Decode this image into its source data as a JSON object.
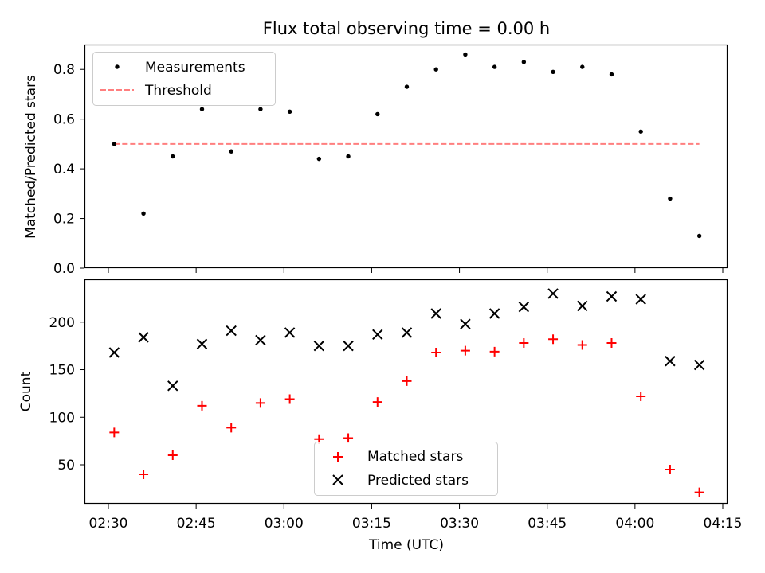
{
  "chart_data": [
    {
      "type": "scatter",
      "title": "Flux total observing time = 0.00 h",
      "xlabel": "",
      "ylabel": "Matched/Predicted stars",
      "ylim": [
        0,
        0.9
      ],
      "yticks": [
        "0.0",
        "0.2",
        "0.4",
        "0.6",
        "0.8"
      ],
      "x": [
        "02:31",
        "02:36",
        "02:41",
        "02:46",
        "02:51",
        "02:56",
        "03:01",
        "03:06",
        "03:11",
        "03:16",
        "03:21",
        "03:26",
        "03:31",
        "03:36",
        "03:41",
        "03:46",
        "03:51",
        "03:56",
        "04:01",
        "04:06",
        "04:11"
      ],
      "series": [
        {
          "name": "Measurements",
          "marker": "dot",
          "color": "#000000",
          "values": [
            0.5,
            0.22,
            0.45,
            0.64,
            0.47,
            0.64,
            0.63,
            0.44,
            0.45,
            0.62,
            0.73,
            0.8,
            0.86,
            0.81,
            0.83,
            0.79,
            0.81,
            0.78,
            0.55,
            0.28,
            0.13
          ]
        },
        {
          "name": "Threshold",
          "marker": "dashed-line",
          "color": "#ff7f7f",
          "x": [
            "02:31",
            "04:11"
          ],
          "values": [
            0.5,
            0.5
          ]
        }
      ],
      "legend": "top-left",
      "grid": false
    },
    {
      "type": "scatter",
      "title": "",
      "xlabel": "Time (UTC)",
      "ylabel": "Count",
      "ylim": [
        9,
        245
      ],
      "yticks": [
        "50",
        "100",
        "150",
        "200"
      ],
      "xticks": [
        "02:30",
        "02:45",
        "03:00",
        "03:15",
        "03:30",
        "03:45",
        "04:00",
        "04:15"
      ],
      "x": [
        "02:31",
        "02:36",
        "02:41",
        "02:46",
        "02:51",
        "02:56",
        "03:01",
        "03:06",
        "03:11",
        "03:16",
        "03:21",
        "03:26",
        "03:31",
        "03:36",
        "03:41",
        "03:46",
        "03:51",
        "03:56",
        "04:01",
        "04:06",
        "04:11"
      ],
      "series": [
        {
          "name": "Matched stars",
          "marker": "plus",
          "color": "#ff0000",
          "values": [
            84,
            40,
            60,
            112,
            89,
            115,
            119,
            77,
            78,
            116,
            138,
            168,
            170,
            169,
            178,
            182,
            176,
            178,
            122,
            45,
            21
          ]
        },
        {
          "name": "Predicted stars",
          "marker": "x",
          "color": "#000000",
          "values": [
            168,
            184,
            133,
            177,
            191,
            181,
            189,
            175,
            175,
            187,
            189,
            209,
            198,
            209,
            216,
            230,
            217,
            227,
            224,
            159,
            155
          ]
        }
      ],
      "legend": "bottom-center",
      "grid": false
    }
  ]
}
